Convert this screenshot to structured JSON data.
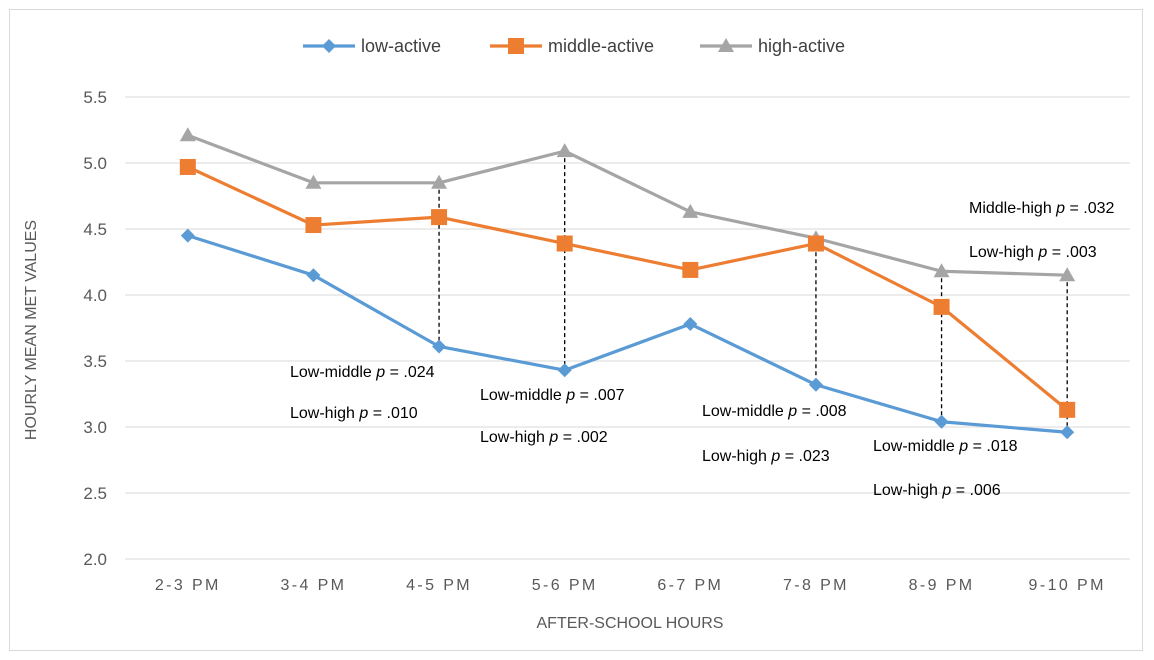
{
  "chart_data": {
    "type": "line",
    "title": "",
    "xlabel": "AFTER-SCHOOL HOURS",
    "ylabel": "HOURLY MEAN MET VALUES",
    "ylim": [
      2.0,
      5.5
    ],
    "yticks": [
      "2.0",
      "2.5",
      "3.0",
      "3.5",
      "4.0",
      "4.5",
      "5.0",
      "5.5"
    ],
    "categories": [
      "2-3 PM",
      "3-4 PM",
      "4-5 PM",
      "5-6 PM",
      "6-7 PM",
      "7-8 PM",
      "8-9 PM",
      "9-10 PM"
    ],
    "grid": "horizontal",
    "legend_position": "top",
    "series": [
      {
        "name": "low-active",
        "color": "#5b9bd5",
        "marker": "diamond",
        "values": [
          4.45,
          4.15,
          3.61,
          3.43,
          3.78,
          3.32,
          3.04,
          2.96
        ]
      },
      {
        "name": "middle-active",
        "color": "#ed7d31",
        "marker": "square",
        "values": [
          4.97,
          4.53,
          4.59,
          4.39,
          4.19,
          4.39,
          3.91,
          3.13
        ]
      },
      {
        "name": "high-active",
        "color": "#a5a5a5",
        "marker": "triangle",
        "values": [
          5.21,
          4.85,
          4.85,
          5.09,
          4.63,
          4.43,
          4.18,
          4.15
        ]
      }
    ],
    "annotations": [
      {
        "category": "4-5 PM",
        "line1": {
          "prefix": "Low-middle ",
          "p": "p",
          "suffix": " = .024"
        },
        "line2": {
          "prefix": "Low-high ",
          "p": "p",
          "suffix": " = .010"
        }
      },
      {
        "category": "5-6 PM",
        "line1": {
          "prefix": "Low-middle ",
          "p": "p",
          "suffix": " = .007"
        },
        "line2": {
          "prefix": "Low-high ",
          "p": "p",
          "suffix": " = .002"
        }
      },
      {
        "category": "7-8 PM",
        "line1": {
          "prefix": "Low-middle ",
          "p": "p",
          "suffix": " = .008"
        },
        "line2": {
          "prefix": "Low-high ",
          "p": "p",
          "suffix": " = .023"
        }
      },
      {
        "category": "8-9 PM",
        "line1": {
          "prefix": "Low-middle ",
          "p": "p",
          "suffix": " = .018"
        },
        "line2": {
          "prefix": "Low-high ",
          "p": "p",
          "suffix": " = .006"
        }
      },
      {
        "category": "9-10 PM",
        "line1": {
          "prefix": "Middle-high ",
          "p": "p",
          "suffix": " = .032"
        },
        "line2": {
          "prefix": "Low-high ",
          "p": "p",
          "suffix": " = .003"
        }
      }
    ]
  }
}
